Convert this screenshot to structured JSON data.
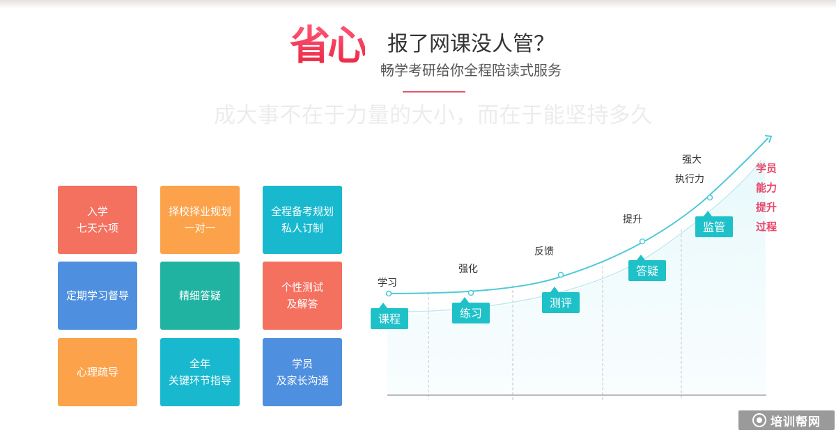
{
  "header": {
    "brand_title": "省心",
    "headline": "报了网课没人管？",
    "subline": "畅学考研给你全程陪读式服务",
    "motto": "成大事不在于力量的大小，而在于能坚持多久"
  },
  "services": [
    {
      "line1": "入学",
      "line2": "七天六项",
      "color": "#f4705f"
    },
    {
      "line1": "择校择业规划",
      "line2": "一对一",
      "color": "#fba24a"
    },
    {
      "line1": "全程备考规划",
      "line2": "私人订制",
      "color": "#18b9cf"
    },
    {
      "line1": "定期学习督导",
      "line2": "",
      "color": "#4f8fdf"
    },
    {
      "line1": "精细答疑",
      "line2": "",
      "color": "#21b3a1"
    },
    {
      "line1": "个性测试",
      "line2": "及解答",
      "color": "#f4705f"
    },
    {
      "line1": "心理疏导",
      "line2": "",
      "color": "#fba24a"
    },
    {
      "line1": "全年",
      "line2": "关键环节指导",
      "color": "#18b9cf"
    },
    {
      "line1": "学员",
      "line2": "及家长沟通",
      "color": "#4f8fdf"
    }
  ],
  "progress_chart": {
    "stages": [
      {
        "label": "学习",
        "badge": "课程"
      },
      {
        "label": "强化",
        "badge": "练习"
      },
      {
        "label": "反馈",
        "badge": "测评"
      },
      {
        "label": "提升",
        "badge": "答疑"
      },
      {
        "label_line1": "强大",
        "label_line2": "执行力",
        "badge": "监管"
      }
    ],
    "side_caption": [
      "学员",
      "能力",
      "提升",
      "过程"
    ],
    "curve_color": "#4fc9d6",
    "badge_color": "#1fc1c9"
  },
  "watermark": {
    "text": "培训帮网"
  }
}
